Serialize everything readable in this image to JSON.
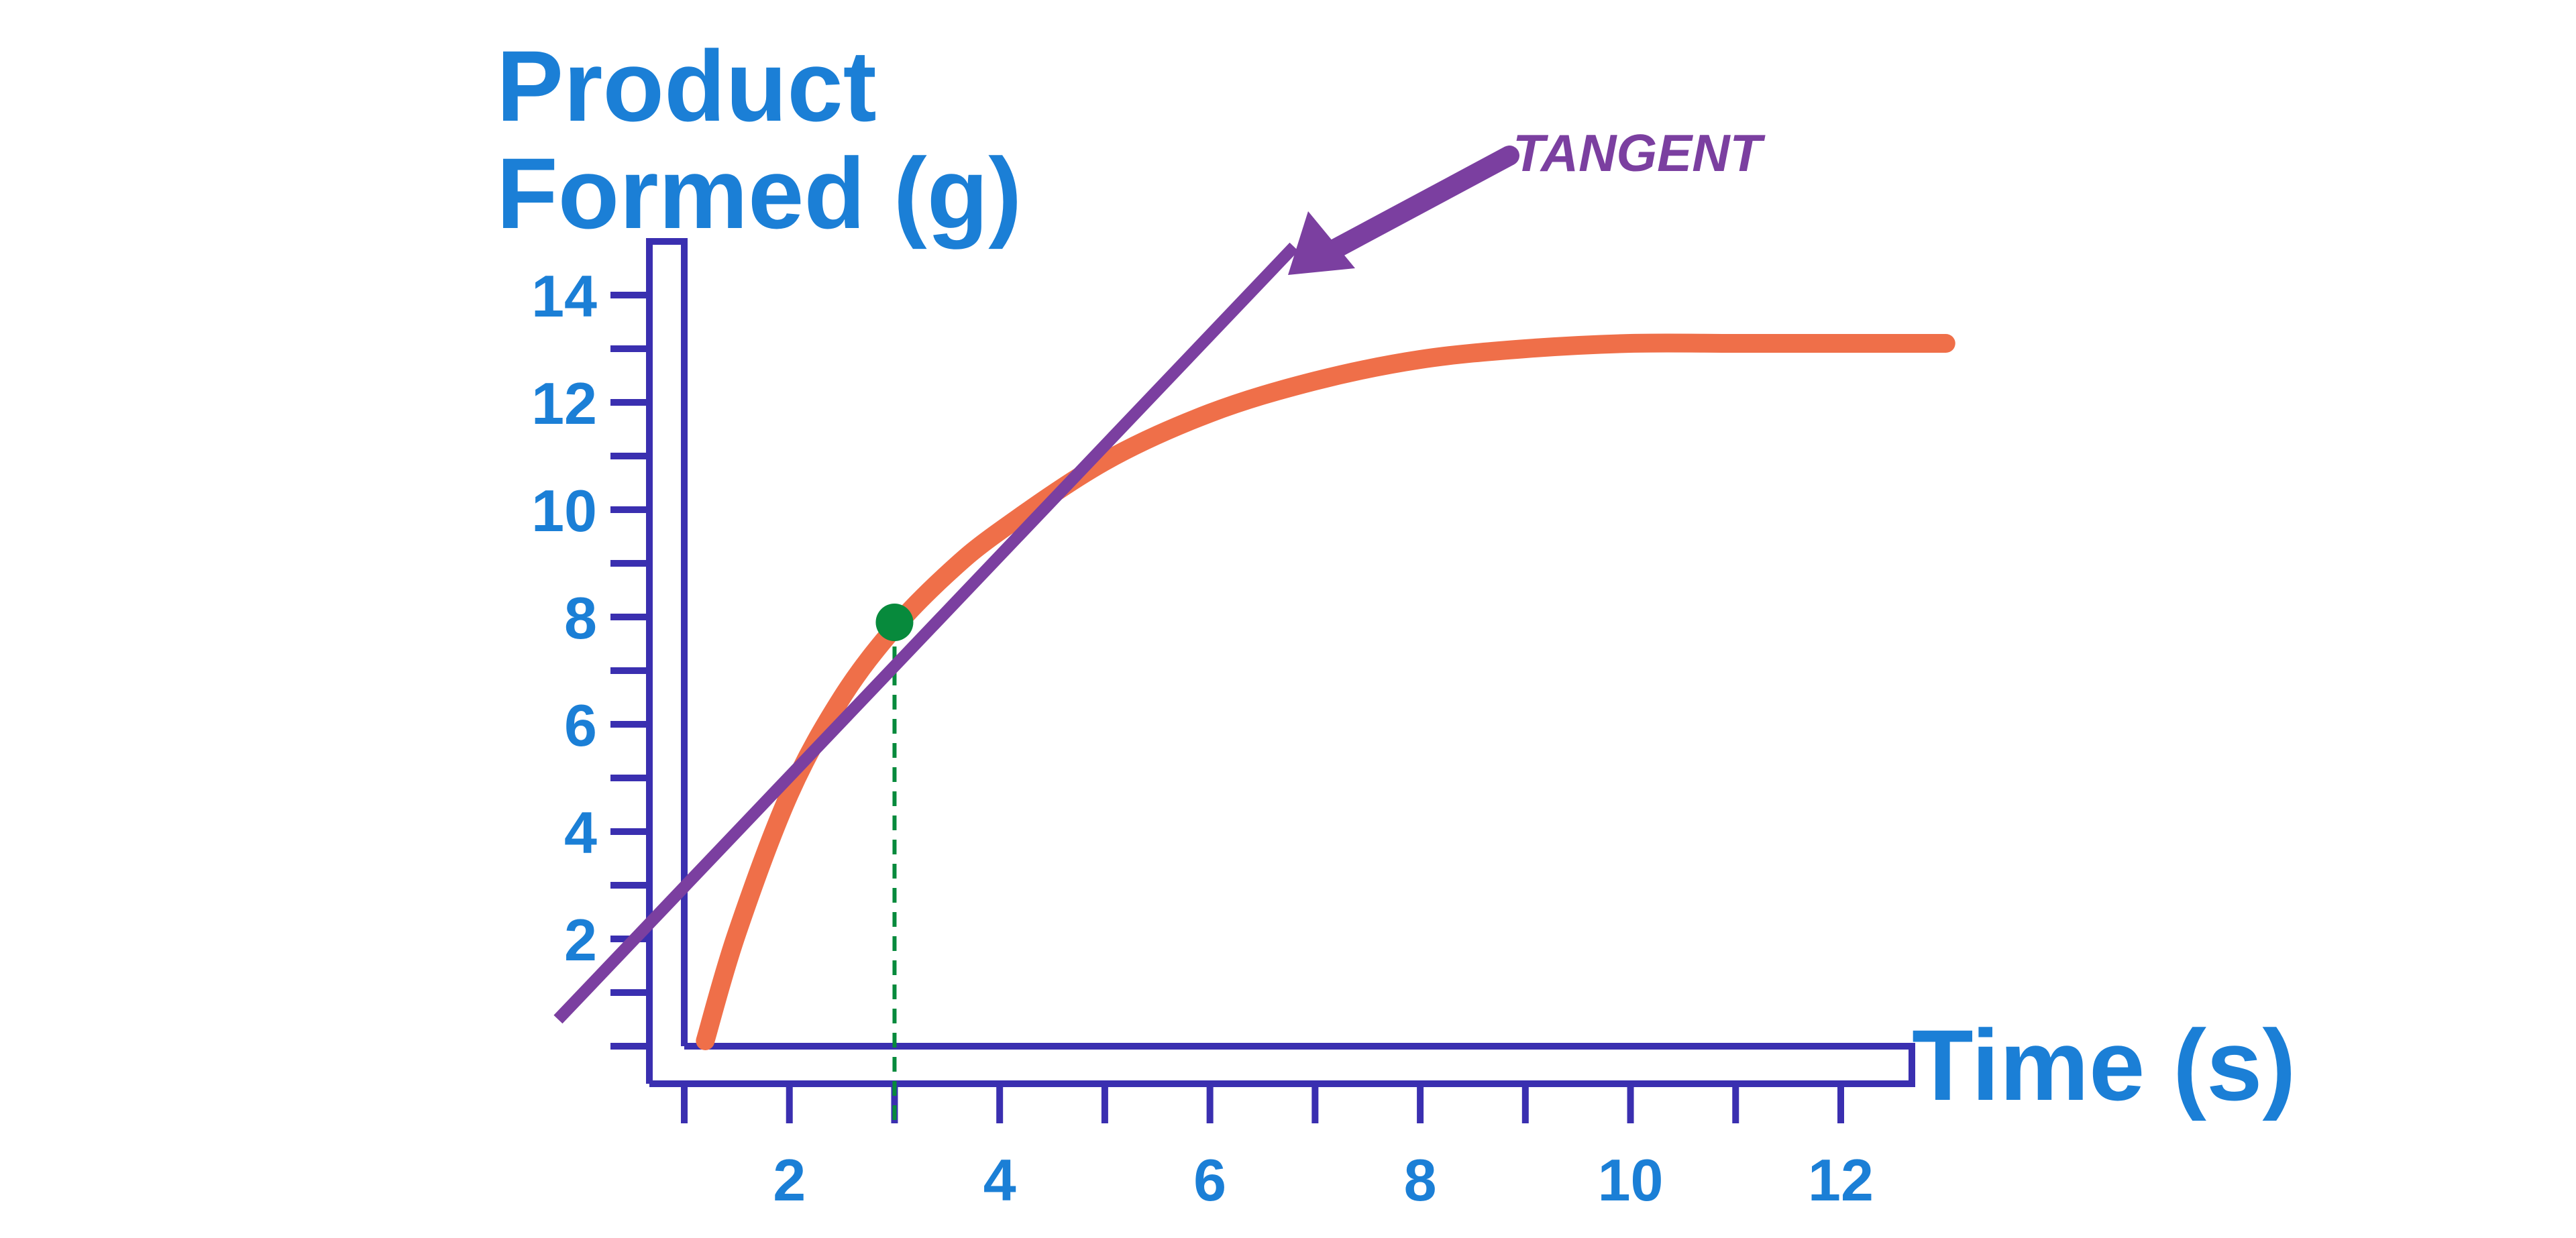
{
  "chart_data": {
    "type": "line",
    "ylabel_lines": [
      "Product",
      "Formed (g)"
    ],
    "xlabel": "Time (s)",
    "x_ticks": [
      2,
      4,
      6,
      8,
      10,
      12
    ],
    "y_ticks": [
      2,
      4,
      6,
      8,
      10,
      12,
      14
    ],
    "xlim": [
      1,
      13
    ],
    "ylim": [
      0,
      16
    ],
    "series": [
      {
        "color": "#ef6f49",
        "x": [
          1.2,
          1.5,
          2,
          2.5,
          3,
          3.5,
          4,
          5,
          6,
          7,
          8,
          9,
          10,
          11,
          12,
          13
        ],
        "y": [
          0.1,
          2.1,
          4.7,
          6.5,
          7.8,
          8.8,
          9.6,
          10.9,
          11.8,
          12.4,
          12.8,
          13.0,
          13.1,
          13.1,
          13.1,
          13.1
        ]
      }
    ],
    "tangent": {
      "color": "#7b3fa0",
      "x": [
        -0.2,
        6.8
      ],
      "y": [
        0.5,
        14.9
      ]
    },
    "point": {
      "x": 3,
      "y": 7.9,
      "color": "#078a3c"
    },
    "annotation": {
      "text": "TANGENT",
      "color": "#7b3fa0"
    },
    "colors": {
      "axis": "#3a2fb0",
      "label": "#1b7fd6",
      "dashed": "#078a3c"
    }
  }
}
